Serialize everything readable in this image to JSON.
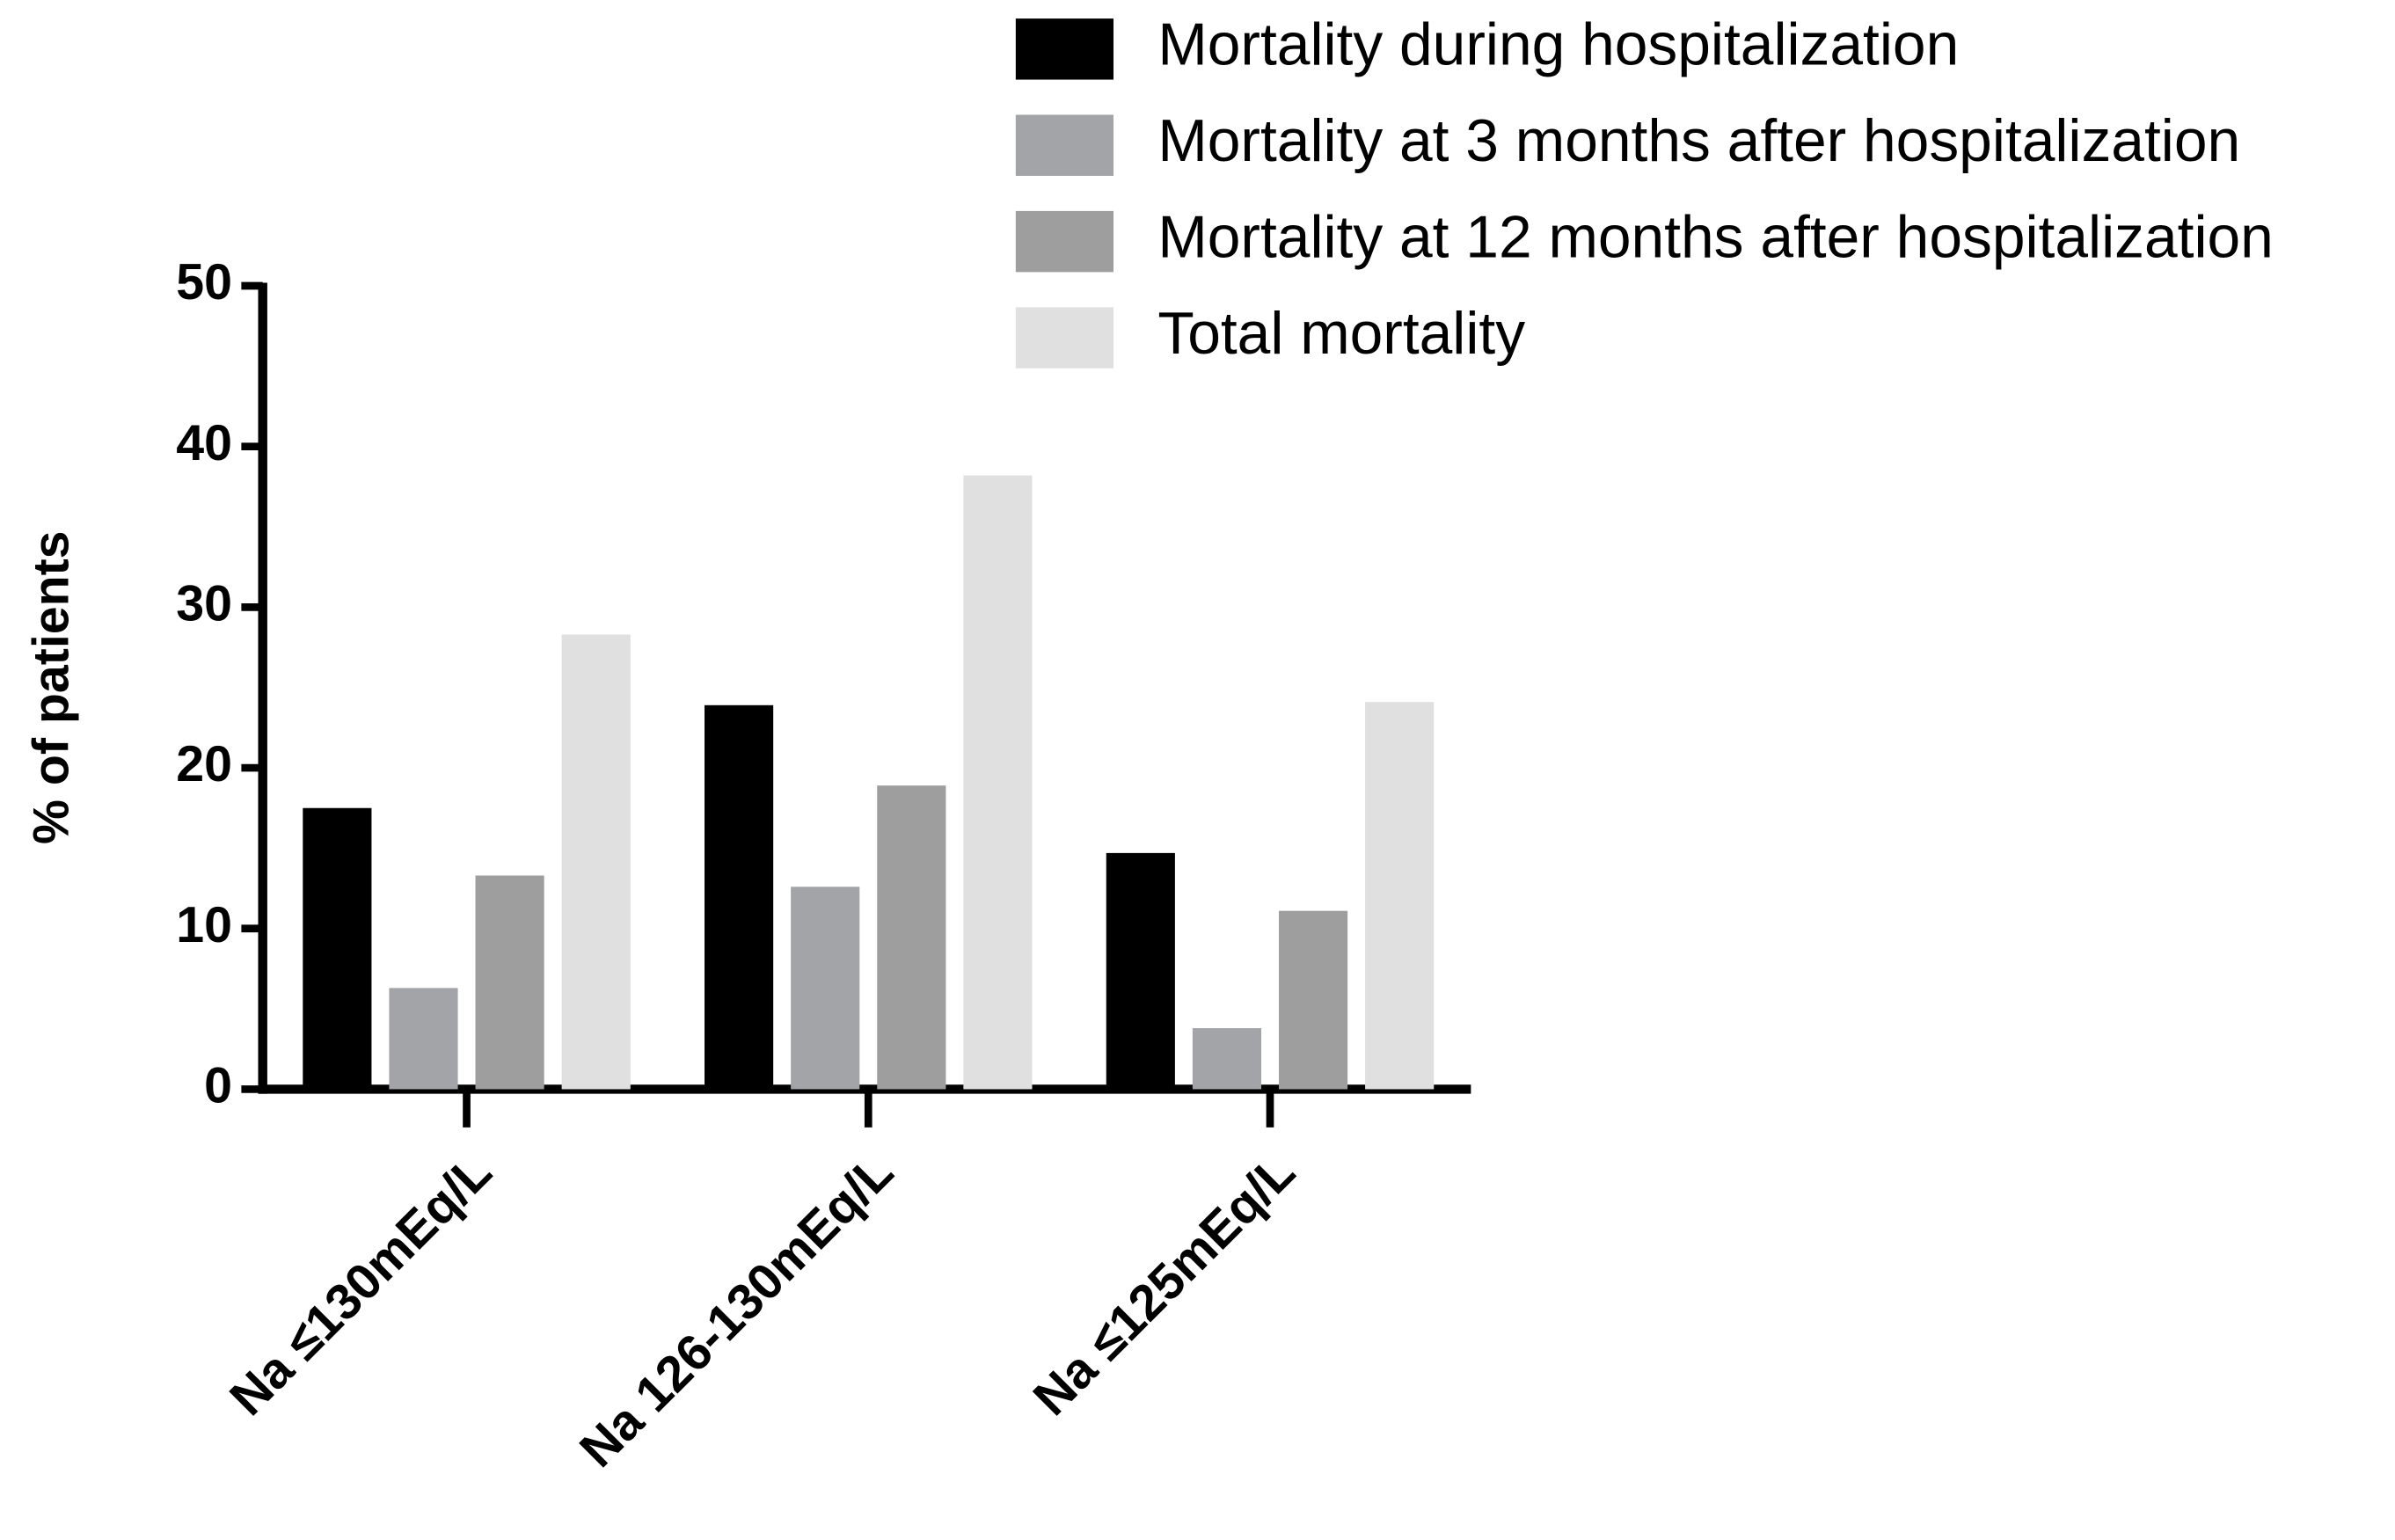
{
  "chart_data": {
    "type": "bar",
    "y_label": "% of patients",
    "categories": [
      "Na ≤130mEq/L",
      "Na 126-130mEq/L",
      "Na ≤125mEq/L"
    ],
    "series": [
      {
        "name": "Mortality during hospitalization",
        "color": "#000000",
        "values": [
          17.5,
          23.9,
          14.7
        ]
      },
      {
        "name": "Mortality at 3 months after hospitalization",
        "color": "#a3a4a8",
        "values": [
          6.3,
          12.6,
          3.8
        ]
      },
      {
        "name": "Mortality at 12 months after hospitalization",
        "color": "#9e9e9e",
        "values": [
          13.3,
          18.9,
          11.1
        ]
      },
      {
        "name": "Total mortality",
        "color": "#e0e0e0",
        "values": [
          28.3,
          38.2,
          24.1
        ]
      }
    ],
    "ylim": [
      0,
      50
    ],
    "yticks": [
      0,
      10,
      20,
      30,
      40,
      50
    ],
    "grid": false,
    "legend": "top-right"
  }
}
